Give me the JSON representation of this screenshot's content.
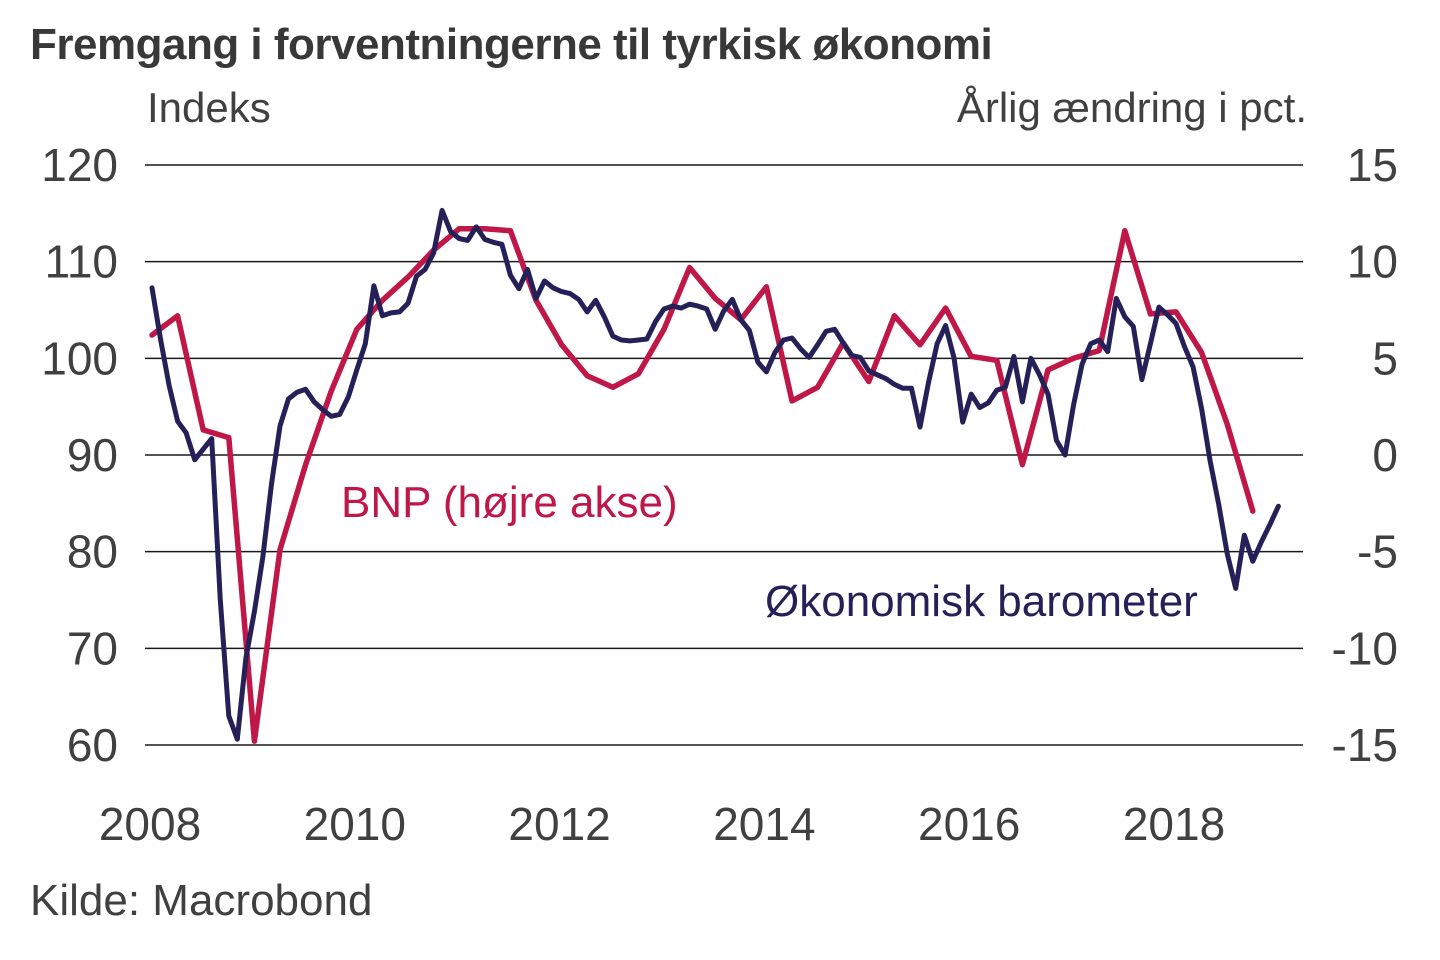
{
  "title": "Fremgang i forventningerne til tyrkisk økonomi",
  "source": "Kilde: Macrobond",
  "colors": {
    "bnp": "#bf1748",
    "barometer": "#252158",
    "grid": "#1a1a1a",
    "tick_text": "#404040",
    "title_text": "#383838"
  },
  "chart_data": {
    "type": "line",
    "title": "Fremgang i forventningerne til tyrkisk økonomi",
    "grid": "horizontal",
    "legend_position": "inline-annotations",
    "left_axis": {
      "label": "Indeks",
      "min": 60,
      "max": 120,
      "ticks": [
        120,
        110,
        100,
        90,
        80,
        70,
        60
      ]
    },
    "right_axis": {
      "label": "Årlig ændring i pct.",
      "min": -15,
      "max": 15,
      "ticks": [
        15,
        10,
        5,
        0,
        -5,
        -10,
        -15
      ]
    },
    "x_axis": {
      "start_year": 2008,
      "end_year": 2019.3,
      "tick_years": [
        2008,
        2010,
        2012,
        2014,
        2016,
        2018
      ]
    },
    "series": [
      {
        "name": "BNP (højre akse)",
        "axis": "right",
        "color_key": "bnp",
        "unit": "pct",
        "start_year": 2008,
        "points_per_year": 4,
        "values": [
          6.2,
          7.2,
          1.3,
          0.9,
          -14.8,
          -4.9,
          -0.5,
          3.3,
          6.5,
          8.0,
          9.2,
          10.6,
          11.7,
          11.7,
          11.6,
          8.0,
          5.7,
          4.1,
          3.5,
          4.2,
          6.5,
          9.7,
          8.1,
          7.0,
          8.7,
          2.8,
          3.5,
          5.8,
          3.8,
          7.2,
          5.7,
          7.6,
          5.1,
          4.9,
          -0.5,
          4.4,
          5.0,
          5.4,
          11.6,
          7.3,
          7.4,
          5.3,
          1.6,
          -2.9
        ]
      },
      {
        "name": "Økonomisk barometer",
        "axis": "left",
        "color_key": "barometer",
        "unit": "indeks",
        "start_year": 2008,
        "points_per_year": 12,
        "values": [
          107.3,
          102.0,
          97.2,
          93.5,
          92.3,
          89.5,
          90.6,
          91.7,
          75.0,
          63.0,
          60.6,
          69.0,
          73.8,
          79.5,
          87.0,
          93.0,
          95.8,
          96.5,
          96.8,
          95.5,
          94.7,
          94.0,
          94.2,
          96.0,
          98.8,
          101.5,
          107.5,
          104.4,
          104.7,
          104.8,
          105.7,
          108.5,
          109.2,
          110.9,
          115.3,
          113.1,
          112.4,
          112.2,
          113.6,
          112.3,
          112.0,
          111.8,
          108.6,
          107.2,
          109.2,
          106.2,
          108.0,
          107.3,
          106.9,
          106.7,
          106.1,
          104.8,
          106.0,
          104.3,
          102.3,
          101.9,
          101.8,
          101.9,
          102.0,
          103.8,
          105.1,
          105.4,
          105.2,
          105.6,
          105.4,
          105.1,
          103.0,
          104.9,
          106.1,
          104.0,
          102.9,
          99.6,
          98.6,
          100.6,
          101.9,
          102.1,
          101.0,
          100.1,
          101.4,
          102.8,
          103.0,
          101.6,
          100.3,
          100.1,
          98.7,
          98.3,
          97.9,
          97.3,
          96.9,
          96.9,
          92.9,
          97.5,
          101.5,
          103.4,
          100.0,
          93.4,
          96.3,
          94.9,
          95.4,
          96.7,
          97.0,
          100.2,
          95.5,
          100.0,
          98.3,
          96.3,
          91.5,
          90.0,
          95.2,
          99.4,
          101.5,
          101.9,
          100.7,
          106.2,
          104.3,
          103.3,
          97.8,
          101.5,
          105.3,
          104.5,
          103.6,
          101.2,
          99.1,
          94.8,
          89.4,
          84.9,
          79.8,
          76.2,
          81.7,
          79.0,
          81.0,
          82.8,
          84.7
        ]
      }
    ]
  }
}
